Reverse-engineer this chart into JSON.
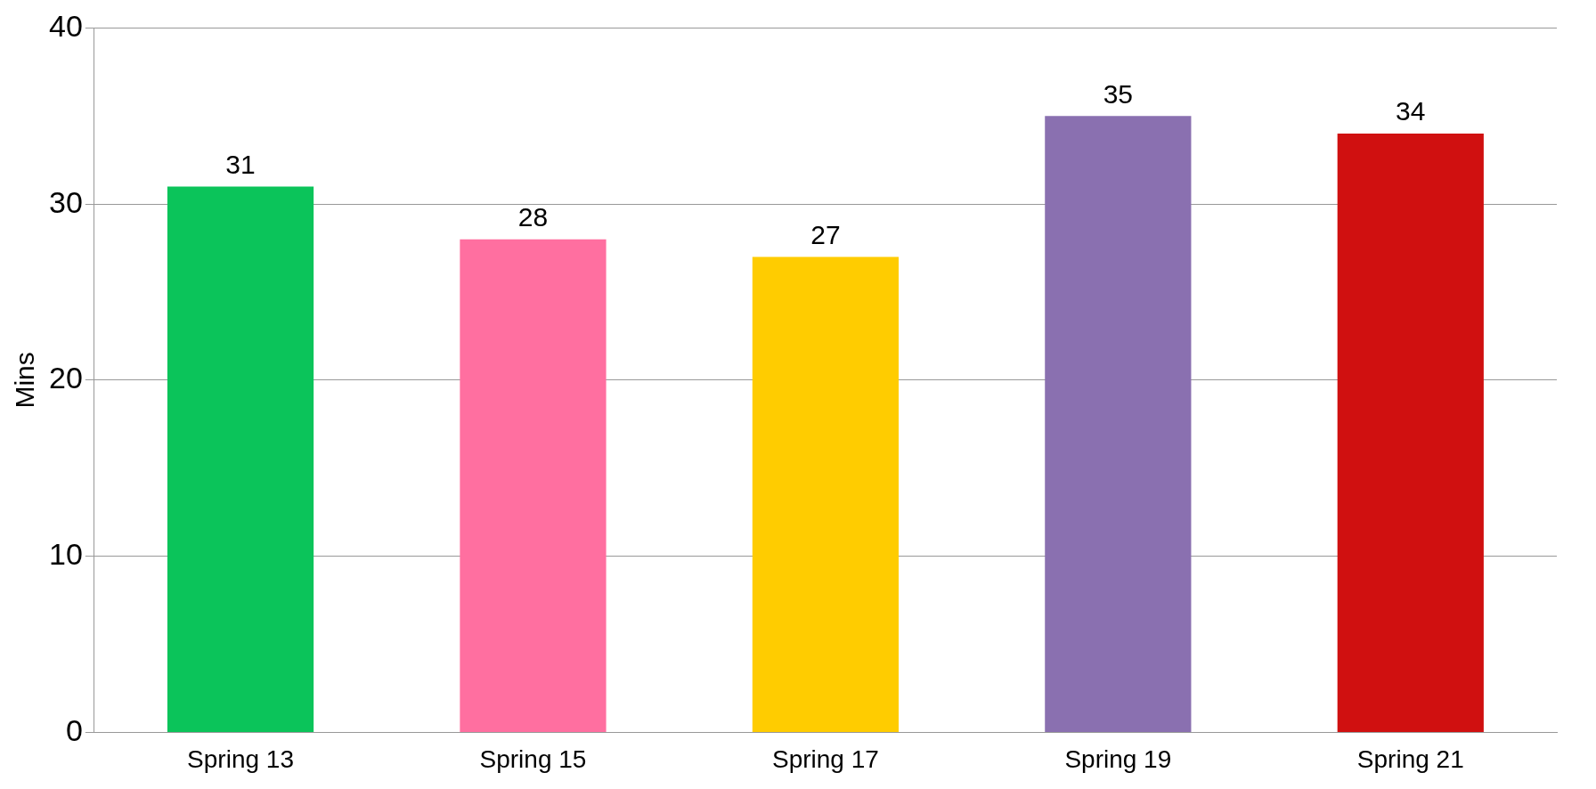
{
  "chart_data": {
    "type": "bar",
    "ylabel": "Mins",
    "categories": [
      "Spring 13",
      "Spring 15",
      "Spring 17",
      "Spring 19",
      "Spring 21"
    ],
    "values": [
      31,
      28,
      27,
      35,
      34
    ],
    "colors": [
      "#0bc45a",
      "#ff6fa0",
      "#ffcc00",
      "#8a70b0",
      "#d01010"
    ],
    "ylim": [
      0,
      40
    ],
    "yticks": [
      0,
      10,
      20,
      30,
      40
    ],
    "grid": "y",
    "data_labels": true
  }
}
